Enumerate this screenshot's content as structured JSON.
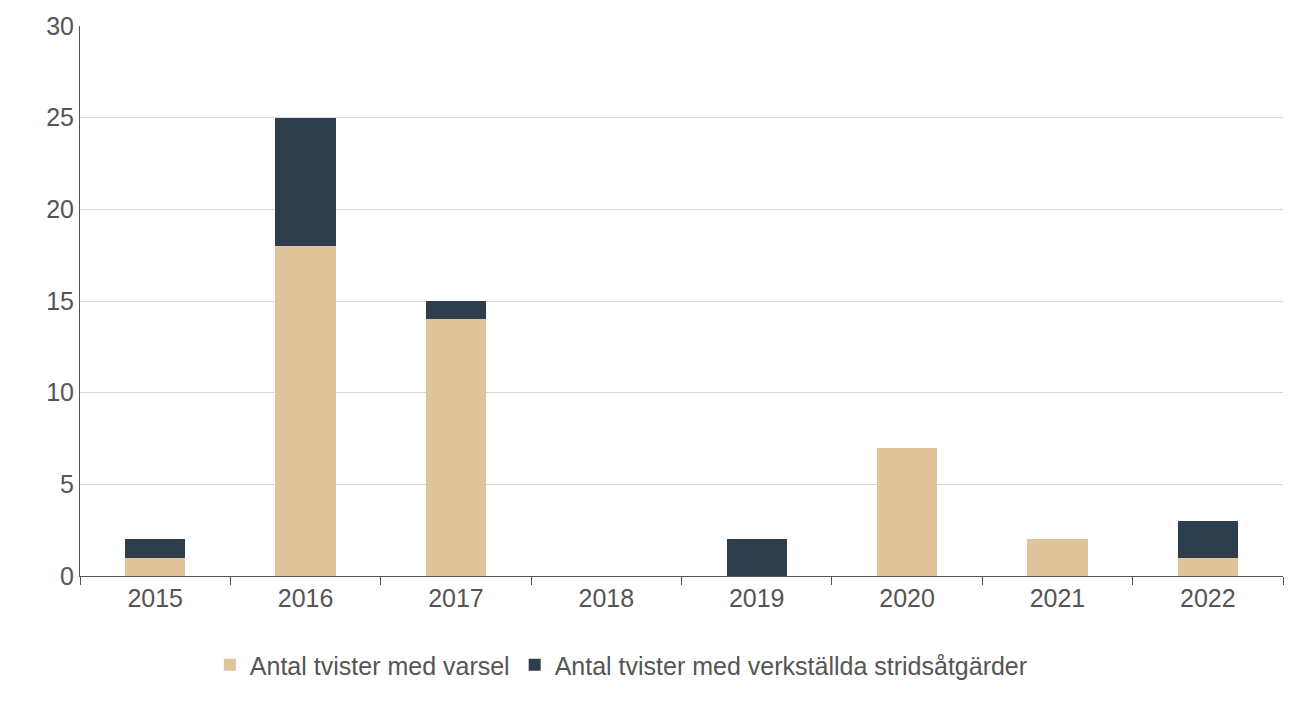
{
  "chart_data": {
    "type": "bar",
    "categories": [
      "2015",
      "2016",
      "2017",
      "2018",
      "2019",
      "2020",
      "2021",
      "2022"
    ],
    "series": [
      {
        "name": "Antal tvister med varsel",
        "color": "#e0c49b",
        "values": [
          1,
          18,
          14,
          0,
          0,
          7,
          2,
          1
        ]
      },
      {
        "name": "Antal tvister med verkställda stridsåtgärder",
        "color": "#2f3e4c",
        "values": [
          1,
          7,
          1,
          0,
          2,
          0,
          0,
          2
        ]
      }
    ],
    "stacked": true,
    "ylim": [
      0,
      30
    ],
    "yticks": [
      0,
      5,
      10,
      15,
      20,
      25,
      30
    ],
    "grid": true,
    "legend": "bottom"
  }
}
